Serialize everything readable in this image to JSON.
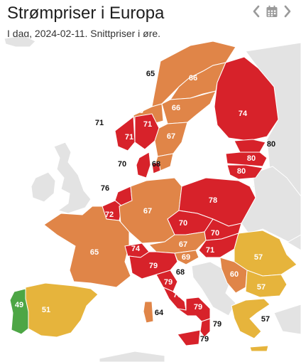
{
  "header": {
    "title": "Strømpriser i Europa",
    "subtitle": "I dag, 2024-02-11. Snittpriser i øre."
  },
  "nav": {
    "prev_icon": "chevron-left-icon",
    "calendar_icon": "calendar-icon",
    "next_icon": "chevron-right-icon"
  },
  "colors": {
    "high": "#d7222a",
    "mid_high": "#e08548",
    "mid": "#e6b43c",
    "low": "#4da645",
    "no_data": "#e3e3e3"
  },
  "prices": {
    "no_north_outside": "65",
    "se_north": "66",
    "no_mid": "66",
    "se_mid": "66",
    "finland": "74",
    "no_west_outside": "71",
    "no_west": "71",
    "no_south": "71",
    "se_south_mid": "67",
    "se_south": "67",
    "estonia_outside": "80",
    "latvia": "80",
    "lithuania": "80",
    "dk_west_outside": "70",
    "dk_east": "68",
    "netherlands_outside": "76",
    "belgium": "72",
    "germany": "67",
    "poland": "78",
    "czechia": "70",
    "slovakia": "70",
    "france": "65",
    "switzerland": "74",
    "austria": "67",
    "hungary": "71",
    "slovenia": "69",
    "croatia_outside": "68",
    "romania": "57",
    "serbia": "60",
    "bulgaria": "57",
    "italy_north": "79",
    "italy_centre": "79",
    "italy_south_mid": "79",
    "italy_south": "79",
    "calabria_outside": "79",
    "sicily_outside": "79",
    "sardinia": "64",
    "greece_outside": "57",
    "spain": "51",
    "portugal": "49"
  }
}
